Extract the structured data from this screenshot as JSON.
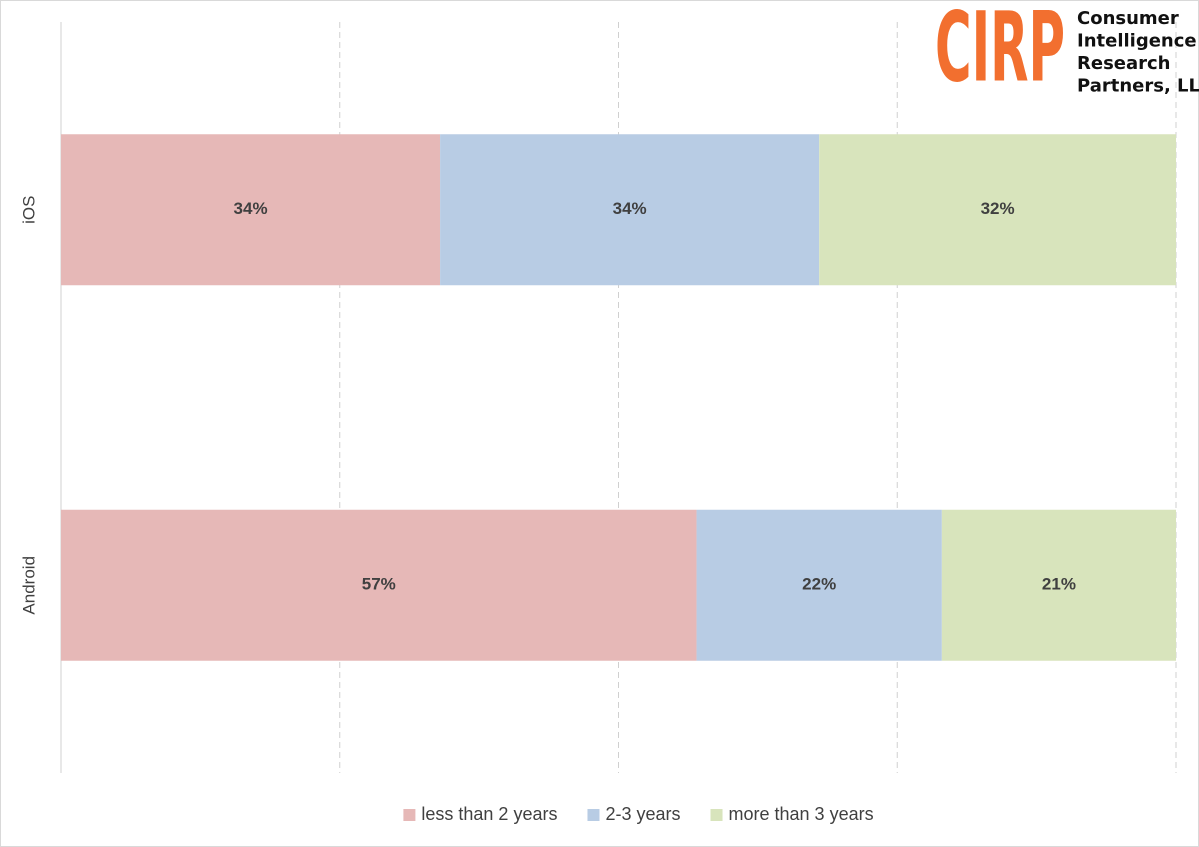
{
  "chart_data": {
    "type": "stacked_barh",
    "categories": [
      "iOS",
      "Android"
    ],
    "series": [
      {
        "name": "less than 2 years",
        "color": "#e6b8b7",
        "values": [
          34,
          57
        ],
        "value_labels": [
          "34%",
          "57%"
        ]
      },
      {
        "name": "2-3 years",
        "color": "#b8cce4",
        "values": [
          34,
          22
        ],
        "value_labels": [
          "34%",
          "22%"
        ]
      },
      {
        "name": "more than 3 years",
        "color": "#d8e4bc",
        "values": [
          32,
          21
        ],
        "value_labels": [
          "32%",
          "21%"
        ]
      }
    ],
    "xlim": [
      0,
      100
    ],
    "xticks": [
      0,
      25,
      50,
      75,
      100
    ],
    "grid": true,
    "legend": "bottom",
    "logo": {
      "mark": "CIRP",
      "lines": [
        "Consumer",
        "Intelligence",
        "Research",
        "Partners, LLC"
      ],
      "color": "#f26f2f"
    }
  }
}
